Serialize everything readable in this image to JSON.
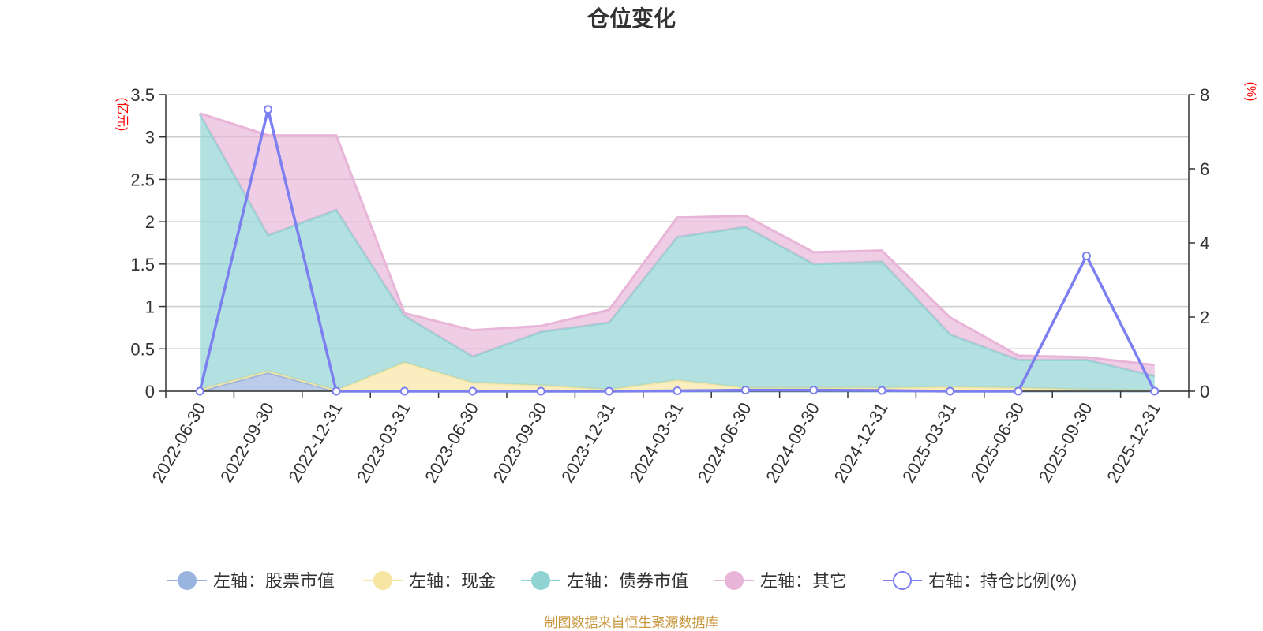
{
  "chart_data": {
    "type": "area",
    "title": "仓位变化",
    "left_axis_unit": "(亿元)",
    "right_axis_unit": "(%)",
    "categories": [
      "2022-06-30",
      "2022-09-30",
      "2022-12-31",
      "2023-03-31",
      "2023-06-30",
      "2023-09-30",
      "2023-12-31",
      "2024-03-31",
      "2024-06-30",
      "2024-09-30",
      "2024-12-31",
      "2025-03-31",
      "2025-06-30",
      "2025-09-30",
      "2025-12-31"
    ],
    "left_ylim": [
      0,
      3.5
    ],
    "left_ticks": [
      "0",
      "0.5",
      "1",
      "1.5",
      "2",
      "2.5",
      "3",
      "3.5"
    ],
    "right_ylim": [
      0,
      8
    ],
    "right_ticks": [
      "0",
      "2",
      "4",
      "6",
      "8"
    ],
    "stacked_series": [
      {
        "name": "左轴：股票市值",
        "color": "#9ab4e0",
        "values": [
          0,
          0.22,
          0,
          0,
          0,
          0,
          0,
          0,
          0,
          0,
          0,
          0,
          0,
          0,
          0
        ]
      },
      {
        "name": "左轴：现金",
        "color": "#f7e6a3",
        "values": [
          0.02,
          0.02,
          0.01,
          0.34,
          0.1,
          0.07,
          0.02,
          0.13,
          0.04,
          0.04,
          0.04,
          0.05,
          0.04,
          0.02,
          0.01
        ]
      },
      {
        "name": "左轴：债券市值",
        "color": "#8fd3d3",
        "values": [
          3.25,
          1.6,
          2.13,
          0.55,
          0.31,
          0.63,
          0.79,
          1.69,
          1.9,
          1.46,
          1.49,
          0.62,
          0.33,
          0.35,
          0.17
        ]
      },
      {
        "name": "左轴：其它",
        "color": "#e8b5d8",
        "values": [
          0.01,
          1.18,
          0.88,
          0.03,
          0.31,
          0.07,
          0.15,
          0.23,
          0.13,
          0.14,
          0.13,
          0.2,
          0.05,
          0.03,
          0.13
        ]
      }
    ],
    "line_series": {
      "name": "右轴：持仓比例(%)",
      "color": "#7b7fef",
      "values": [
        0,
        7.6,
        0,
        0,
        0,
        0,
        0,
        0.01,
        0.03,
        0.03,
        0.02,
        0,
        0,
        3.65,
        0
      ]
    },
    "legend_position": "bottom"
  },
  "footer": {
    "source": "制图数据来自恒生聚源数据库"
  }
}
